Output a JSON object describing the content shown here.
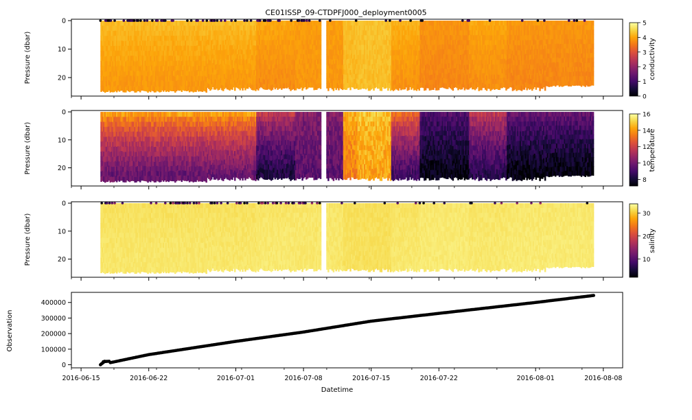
{
  "title": "CE01ISSP_09-CTDPFJ000_deployment0005",
  "chart_data": [
    {
      "type": "heatmap",
      "variable": "conductivity",
      "ylabel": "Pressure (dbar)",
      "y_inverted": true,
      "ylim": [
        26.5,
        -0.5
      ],
      "yticks": [
        0,
        10,
        20
      ],
      "colormap": "inferno",
      "colorbar": {
        "label": "conductivity",
        "min": 0,
        "max": 5,
        "ticks": [
          0,
          1,
          2,
          3,
          4,
          5
        ]
      },
      "typical_range": [
        3.6,
        4.5
      ],
      "max_depth_range": [
        23,
        25
      ]
    },
    {
      "type": "heatmap",
      "variable": "temperature",
      "ylabel": "Pressure (dbar)",
      "y_inverted": true,
      "ylim": [
        26.5,
        -0.5
      ],
      "yticks": [
        0,
        10,
        20
      ],
      "colormap": "inferno",
      "colorbar": {
        "label": "temperature",
        "min": 7.2,
        "max": 16,
        "ticks": [
          8,
          10,
          12,
          14,
          16
        ]
      },
      "pattern": "warm surface water (14-16) during 2016-07-04 to 2016-07-13; cold deep water (7-9) during 2016-06-28 to 2016-07-02 and 2016-07-13 onward"
    },
    {
      "type": "heatmap",
      "variable": "salinity",
      "ylabel": "Pressure (dbar)",
      "y_inverted": true,
      "ylim": [
        26.5,
        -0.5
      ],
      "yticks": [
        0,
        10,
        20
      ],
      "colormap": "inferno",
      "colorbar": {
        "label": "salinity",
        "min": 2,
        "max": 34,
        "ticks": [
          10,
          20,
          30
        ]
      },
      "typical_range": [
        31,
        34
      ]
    },
    {
      "type": "scatter",
      "ylabel": "Observation",
      "xlabel": "Datetime",
      "ylim": [
        -20000,
        465000
      ],
      "yticks": [
        0,
        100000,
        200000,
        300000,
        400000
      ],
      "ytick_labels": [
        "0",
        "100000",
        "200000",
        "300000",
        "400000"
      ],
      "x": [
        "2016-06-17",
        "2016-06-22",
        "2016-07-01",
        "2016-07-08",
        "2016-07-15",
        "2016-07-22",
        "2016-08-01",
        "2016-08-07"
      ],
      "y": [
        0,
        65000,
        150000,
        210000,
        280000,
        330000,
        400000,
        445000
      ],
      "marker_color": "#000000"
    }
  ],
  "x_axis": {
    "start": "2016-06-14",
    "end": "2016-08-10",
    "data_start": "2016-06-17",
    "data_end": "2016-08-07",
    "ticks": [
      "2016-06-15",
      "2016-06-22",
      "2016-07-01",
      "2016-07-08",
      "2016-07-15",
      "2016-07-22",
      "2016-08-01",
      "2016-08-08"
    ]
  }
}
